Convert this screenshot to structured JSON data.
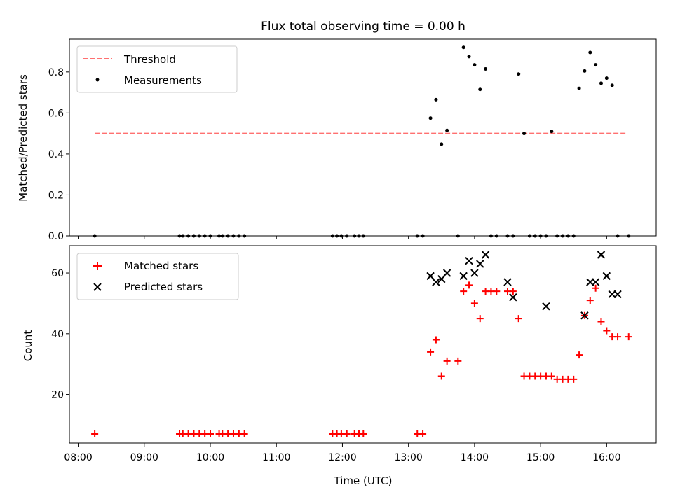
{
  "chart_data": [
    {
      "type": "scatter",
      "title": "Flux total observing time = 0.00 h",
      "xlabel": "",
      "ylabel": "Matched/Predicted stars",
      "ylim": [
        0,
        0.96
      ],
      "yticks": [
        "0.0",
        "0.2",
        "0.4",
        "0.6",
        "0.8"
      ],
      "xlim": [
        "07:52",
        "16:45"
      ],
      "legend_position": "upper-left",
      "threshold": {
        "name": "Threshold",
        "value": 0.5,
        "x_start": "08:15",
        "x_end": "16:18",
        "color": "#ff7070"
      },
      "series": [
        {
          "name": "Measurements",
          "color": "#000000",
          "x": [
            "08:15",
            "09:32",
            "09:35",
            "09:40",
            "09:45",
            "09:50",
            "09:55",
            "10:00",
            "10:08",
            "10:11",
            "10:16",
            "10:21",
            "10:26",
            "10:31",
            "11:51",
            "11:55",
            "11:59",
            "12:04",
            "12:11",
            "12:15",
            "12:19",
            "13:08",
            "13:13",
            "13:20",
            "13:25",
            "13:30",
            "13:35",
            "13:45",
            "13:50",
            "13:55",
            "14:00",
            "14:05",
            "14:10",
            "14:15",
            "14:20",
            "14:30",
            "14:35",
            "14:40",
            "14:45",
            "14:50",
            "14:55",
            "15:00",
            "15:05",
            "15:10",
            "15:15",
            "15:20",
            "15:25",
            "15:30",
            "15:35",
            "15:40",
            "15:45",
            "15:50",
            "15:55",
            "16:00",
            "16:05",
            "16:10",
            "16:20"
          ],
          "y": [
            0,
            0,
            0,
            0,
            0,
            0,
            0,
            0,
            0,
            0,
            0,
            0,
            0,
            0,
            0,
            0,
            0,
            0,
            0,
            0,
            0,
            0,
            0,
            0.575,
            0.665,
            0.448,
            0.515,
            0,
            0.92,
            0.875,
            0.835,
            0.715,
            0.815,
            0,
            0,
            0,
            0,
            0.79,
            0.5,
            0,
            0,
            0,
            0,
            0.51,
            0,
            0,
            0,
            0,
            0.72,
            0.805,
            0.895,
            0.835,
            0.745,
            0.77,
            0.735,
            0,
            0
          ]
        }
      ]
    },
    {
      "type": "scatter",
      "title": "",
      "xlabel": "Time (UTC)",
      "ylabel": "Count",
      "ylim": [
        4,
        69
      ],
      "yticks": [
        "20",
        "40",
        "60"
      ],
      "xticks": [
        "08:00",
        "09:00",
        "10:00",
        "11:00",
        "12:00",
        "13:00",
        "14:00",
        "15:00",
        "16:00"
      ],
      "xlim": [
        "07:52",
        "16:45"
      ],
      "legend_position": "upper-left",
      "series": [
        {
          "name": "Matched stars",
          "marker": "plus",
          "color": "#ff0000",
          "x": [
            "08:15",
            "09:32",
            "09:35",
            "09:40",
            "09:45",
            "09:50",
            "09:55",
            "10:00",
            "10:08",
            "10:11",
            "10:16",
            "10:21",
            "10:26",
            "10:31",
            "11:51",
            "11:55",
            "11:59",
            "12:04",
            "12:11",
            "12:15",
            "12:19",
            "13:08",
            "13:13",
            "13:20",
            "13:25",
            "13:30",
            "13:35",
            "13:45",
            "13:50",
            "13:55",
            "14:00",
            "14:05",
            "14:10",
            "14:15",
            "14:20",
            "14:30",
            "14:35",
            "14:40",
            "14:45",
            "14:50",
            "14:55",
            "15:00",
            "15:05",
            "15:10",
            "15:15",
            "15:20",
            "15:25",
            "15:30",
            "15:35",
            "15:40",
            "15:45",
            "15:50",
            "15:55",
            "16:00",
            "16:05",
            "16:10",
            "16:20"
          ],
          "y": [
            7,
            7,
            7,
            7,
            7,
            7,
            7,
            7,
            7,
            7,
            7,
            7,
            7,
            7,
            7,
            7,
            7,
            7,
            7,
            7,
            7,
            7,
            7,
            34,
            38,
            26,
            31,
            31,
            54,
            56,
            50,
            45,
            54,
            54,
            54,
            54,
            54,
            45,
            26,
            26,
            26,
            26,
            26,
            26,
            25,
            25,
            25,
            25,
            33,
            46,
            51,
            55,
            44,
            41,
            39,
            39,
            39
          ]
        },
        {
          "name": "Predicted stars",
          "marker": "x",
          "color": "#000000",
          "x": [
            "13:20",
            "13:25",
            "13:30",
            "13:35",
            "13:50",
            "13:55",
            "14:00",
            "14:05",
            "14:10",
            "14:30",
            "14:35",
            "15:05",
            "15:40",
            "15:45",
            "15:50",
            "15:55",
            "16:00",
            "16:05",
            "16:10"
          ],
          "y": [
            59,
            57,
            58,
            60,
            59,
            64,
            60,
            63,
            66,
            57,
            52,
            49,
            46,
            57,
            57,
            66,
            59,
            53,
            53
          ]
        }
      ]
    }
  ]
}
